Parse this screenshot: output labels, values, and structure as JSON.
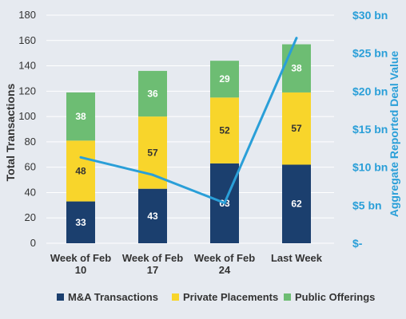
{
  "chart_data": {
    "type": "bar",
    "stacked": true,
    "categories": [
      [
        "Week of Feb",
        "10"
      ],
      [
        "Week of Feb",
        "17"
      ],
      [
        "Week of Feb",
        "24"
      ],
      [
        "Last Week"
      ]
    ],
    "series": [
      {
        "name": "M&A Transactions",
        "values": [
          33,
          43,
          63,
          62
        ],
        "color": "#1b3f6e",
        "label_color": "#ffffff"
      },
      {
        "name": "Private Placements",
        "values": [
          48,
          57,
          52,
          57
        ],
        "color": "#f8d52b",
        "label_color": "#333333"
      },
      {
        "name": "Public Offerings",
        "values": [
          38,
          36,
          29,
          38
        ],
        "color": "#6dbd73",
        "label_color": "#ffffff"
      }
    ],
    "line_series": {
      "name": "Aggregate Reported Deal Value",
      "values": [
        11.3,
        9.0,
        5.3,
        27.0
      ],
      "color": "#2a9fd8",
      "axis": "right"
    },
    "ylabel": "Total Transactions",
    "ylim": [
      0,
      180
    ],
    "yticks": [
      0,
      20,
      40,
      60,
      80,
      100,
      120,
      140,
      160,
      180
    ],
    "y2label": "Aggregate Reported Deal Value",
    "y2lim": [
      0,
      30
    ],
    "y2ticks": [
      0,
      5,
      10,
      15,
      20,
      25,
      30
    ],
    "y2ticklabels": [
      "$-",
      "$5 bn",
      "$10 bn",
      "$15 bn",
      "$20 bn",
      "$25 bn",
      "$30 bn"
    ],
    "grid": true,
    "legend_position": "bottom"
  },
  "colors": {
    "background": "#e6eaf0",
    "grid": "#ffffff",
    "right_axis": "#2a9fd8",
    "text": "#333333"
  }
}
